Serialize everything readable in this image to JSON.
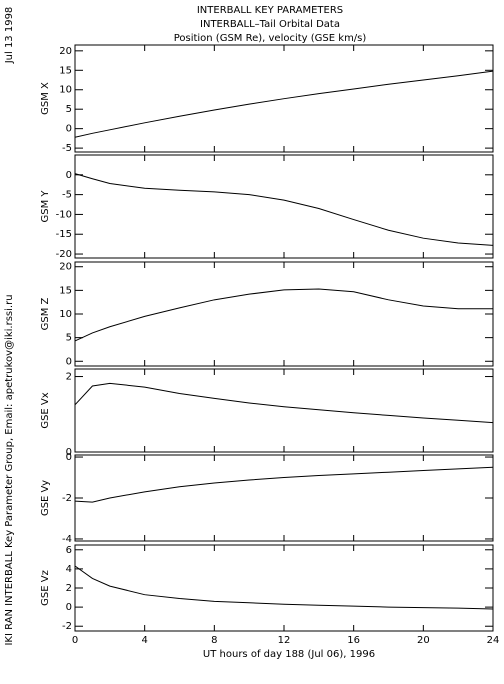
{
  "header": {
    "lines": [
      "INTERBALL KEY PARAMETERS",
      "INTERBALL–Tail Orbital Data",
      "Position (GSM Re), velocity (GSE km/s)"
    ],
    "side_date": "Jul 13 1998",
    "side_credit": "IKI RAN INTERBALL Key Parameter Group, Email: apetrukov@iki.rssi.ru"
  },
  "chart_data": [
    {
      "type": "line",
      "ylabel": "GSM X",
      "color": "#000000",
      "x": [
        0,
        1,
        2,
        4,
        6,
        8,
        10,
        12,
        14,
        16,
        18,
        20,
        22,
        24
      ],
      "values": [
        -2.2,
        -1.2,
        -0.3,
        1.5,
        3.2,
        4.8,
        6.3,
        7.7,
        9.0,
        10.2,
        11.4,
        12.5,
        13.6,
        14.8
      ],
      "xlim": [
        0,
        24
      ],
      "xticks": [
        0,
        4,
        8,
        12,
        16,
        20,
        24
      ],
      "ylim": [
        -6,
        21.5
      ],
      "yticks": [
        -5,
        0,
        5,
        10,
        15,
        20
      ]
    },
    {
      "type": "line",
      "ylabel": "GSM Y",
      "color": "#000000",
      "x": [
        0,
        1,
        2,
        4,
        6,
        8,
        10,
        12,
        14,
        16,
        18,
        20,
        22,
        24
      ],
      "values": [
        0.3,
        -1.0,
        -2.2,
        -3.4,
        -3.9,
        -4.3,
        -5.0,
        -6.4,
        -8.5,
        -11.3,
        -14.0,
        -16.0,
        -17.2,
        -17.8
      ],
      "xlim": [
        0,
        24
      ],
      "xticks": [
        0,
        4,
        8,
        12,
        16,
        20,
        24
      ],
      "ylim": [
        -21,
        5
      ],
      "yticks": [
        -20,
        -15,
        -10,
        -5,
        0
      ]
    },
    {
      "type": "line",
      "ylabel": "GSM Z",
      "color": "#000000",
      "x": [
        0,
        1,
        2,
        4,
        6,
        8,
        10,
        12,
        14,
        16,
        18,
        20,
        22,
        24
      ],
      "values": [
        4.3,
        6.0,
        7.3,
        9.5,
        11.3,
        13.0,
        14.2,
        15.1,
        15.3,
        14.7,
        13.0,
        11.7,
        11.1,
        11.1
      ],
      "xlim": [
        0,
        24
      ],
      "xticks": [
        0,
        4,
        8,
        12,
        16,
        20,
        24
      ],
      "ylim": [
        -1,
        21
      ],
      "yticks": [
        0,
        5,
        10,
        15,
        20
      ]
    },
    {
      "type": "line",
      "ylabel": "GSE Vx",
      "color": "#000000",
      "x": [
        0,
        1,
        2,
        4,
        6,
        8,
        10,
        12,
        14,
        16,
        18,
        20,
        22,
        24
      ],
      "values": [
        1.25,
        1.75,
        1.82,
        1.72,
        1.55,
        1.42,
        1.3,
        1.2,
        1.12,
        1.04,
        0.97,
        0.9,
        0.84,
        0.78
      ],
      "xlim": [
        0,
        24
      ],
      "xticks": [
        0,
        4,
        8,
        12,
        16,
        20,
        24
      ],
      "ylim": [
        0,
        2.2
      ],
      "yticks": [
        0,
        2
      ]
    },
    {
      "type": "line",
      "ylabel": "GSE Vy",
      "color": "#000000",
      "x": [
        0,
        1,
        2,
        4,
        6,
        8,
        10,
        12,
        14,
        16,
        18,
        20,
        22,
        24
      ],
      "values": [
        -2.15,
        -2.2,
        -2.0,
        -1.7,
        -1.45,
        -1.27,
        -1.12,
        -1.0,
        -0.9,
        -0.82,
        -0.74,
        -0.66,
        -0.58,
        -0.5
      ],
      "xlim": [
        0,
        24
      ],
      "xticks": [
        0,
        4,
        8,
        12,
        16,
        20,
        24
      ],
      "ylim": [
        -4.1,
        0.1
      ],
      "yticks": [
        -4,
        -2,
        0
      ]
    },
    {
      "type": "line",
      "ylabel": "GSE Vz",
      "color": "#000000",
      "x": [
        0,
        1,
        2,
        4,
        6,
        8,
        10,
        12,
        14,
        16,
        18,
        20,
        22,
        24
      ],
      "values": [
        4.3,
        3.0,
        2.2,
        1.3,
        0.9,
        0.6,
        0.45,
        0.3,
        0.2,
        0.1,
        0.0,
        -0.05,
        -0.1,
        -0.2
      ],
      "xlim": [
        0,
        24
      ],
      "xticks": [
        0,
        4,
        8,
        12,
        16,
        20,
        24
      ],
      "xlabel": "UT hours of day 188 (Jul 06), 1996",
      "ylim": [
        -2.5,
        6.5
      ],
      "yticks": [
        -2,
        0,
        2,
        4,
        6
      ]
    }
  ]
}
